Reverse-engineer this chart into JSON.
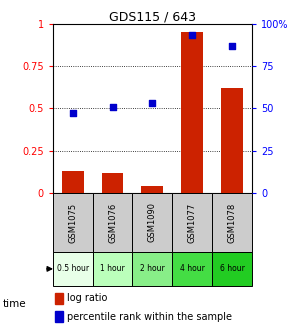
{
  "title": "GDS115 / 643",
  "samples": [
    "GSM1075",
    "GSM1076",
    "GSM1090",
    "GSM1077",
    "GSM1078"
  ],
  "time_labels": [
    "0.5 hour",
    "1 hour",
    "2 hour",
    "4 hour",
    "6 hour"
  ],
  "log_ratio": [
    0.13,
    0.12,
    0.04,
    0.95,
    0.62
  ],
  "percentile_rank": [
    0.47,
    0.51,
    0.53,
    0.93,
    0.87
  ],
  "bar_color": "#cc2200",
  "dot_color": "#0000cc",
  "ylim": [
    0,
    1.0
  ],
  "yticks": [
    0,
    0.25,
    0.5,
    0.75,
    1.0
  ],
  "ytick_labels_left": [
    "0",
    "0.25",
    "0.5",
    "0.75",
    "1"
  ],
  "ytick_labels_right": [
    "0",
    "25",
    "50",
    "75",
    "100%"
  ],
  "time_colors": [
    "#e8ffe8",
    "#bbffbb",
    "#88ee88",
    "#44dd44",
    "#22cc22"
  ],
  "sample_bg": "#cccccc",
  "legend_bar_label": "log ratio",
  "legend_dot_label": "percentile rank within the sample"
}
